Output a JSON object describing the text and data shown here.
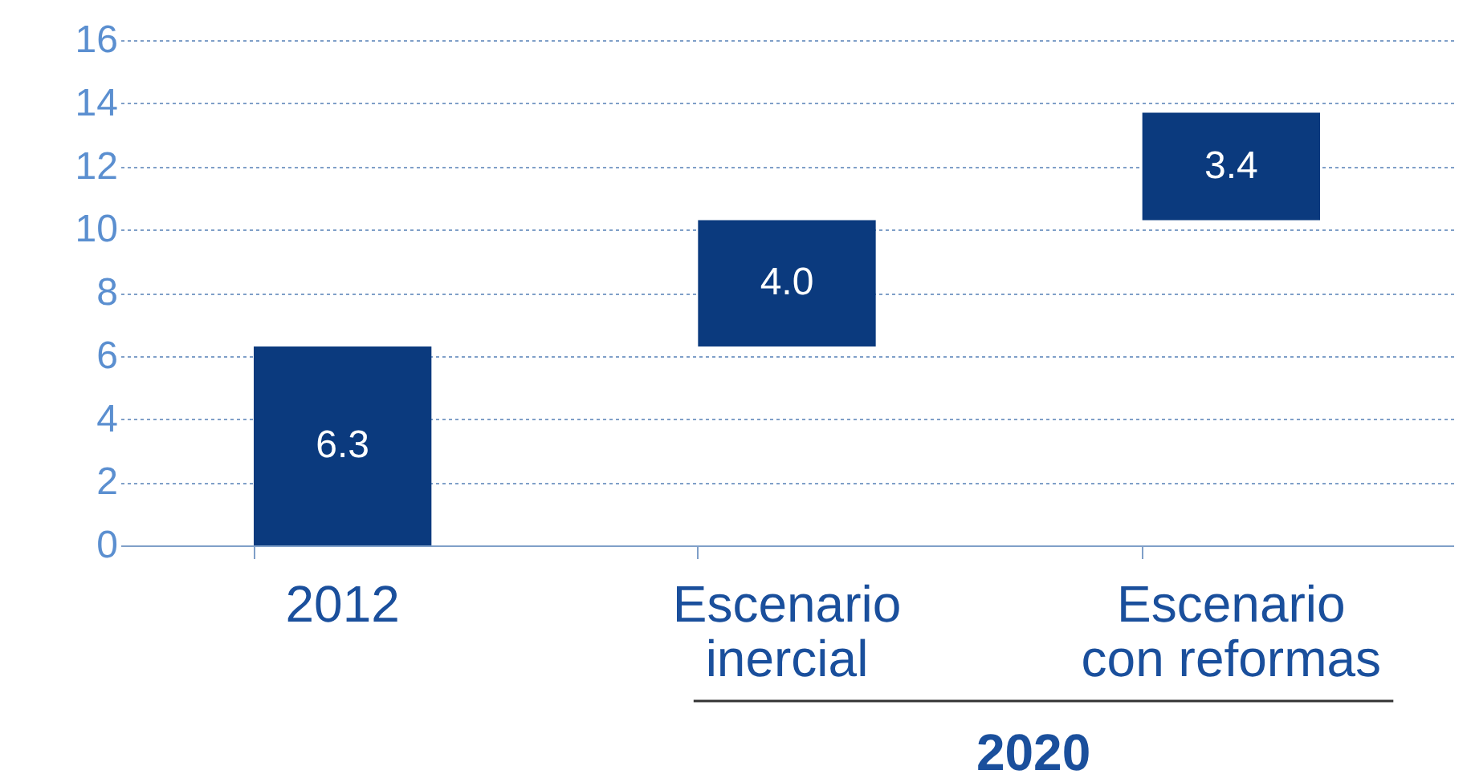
{
  "chart_data": {
    "type": "bar",
    "categories": [
      "2012",
      "Escenario inercial",
      "Escenario con reformas"
    ],
    "values": [
      6.3,
      4.0,
      3.4
    ],
    "base": [
      0,
      6.3,
      10.3
    ],
    "color": "#0b3a7e",
    "ylim": [
      0,
      16
    ],
    "yticks": [
      0,
      2,
      4,
      6,
      8,
      10,
      12,
      14,
      16
    ],
    "grid": "y",
    "value_labels": [
      "6.3",
      "4.0",
      "3.4"
    ],
    "annotations": [
      "2020"
    ]
  }
}
